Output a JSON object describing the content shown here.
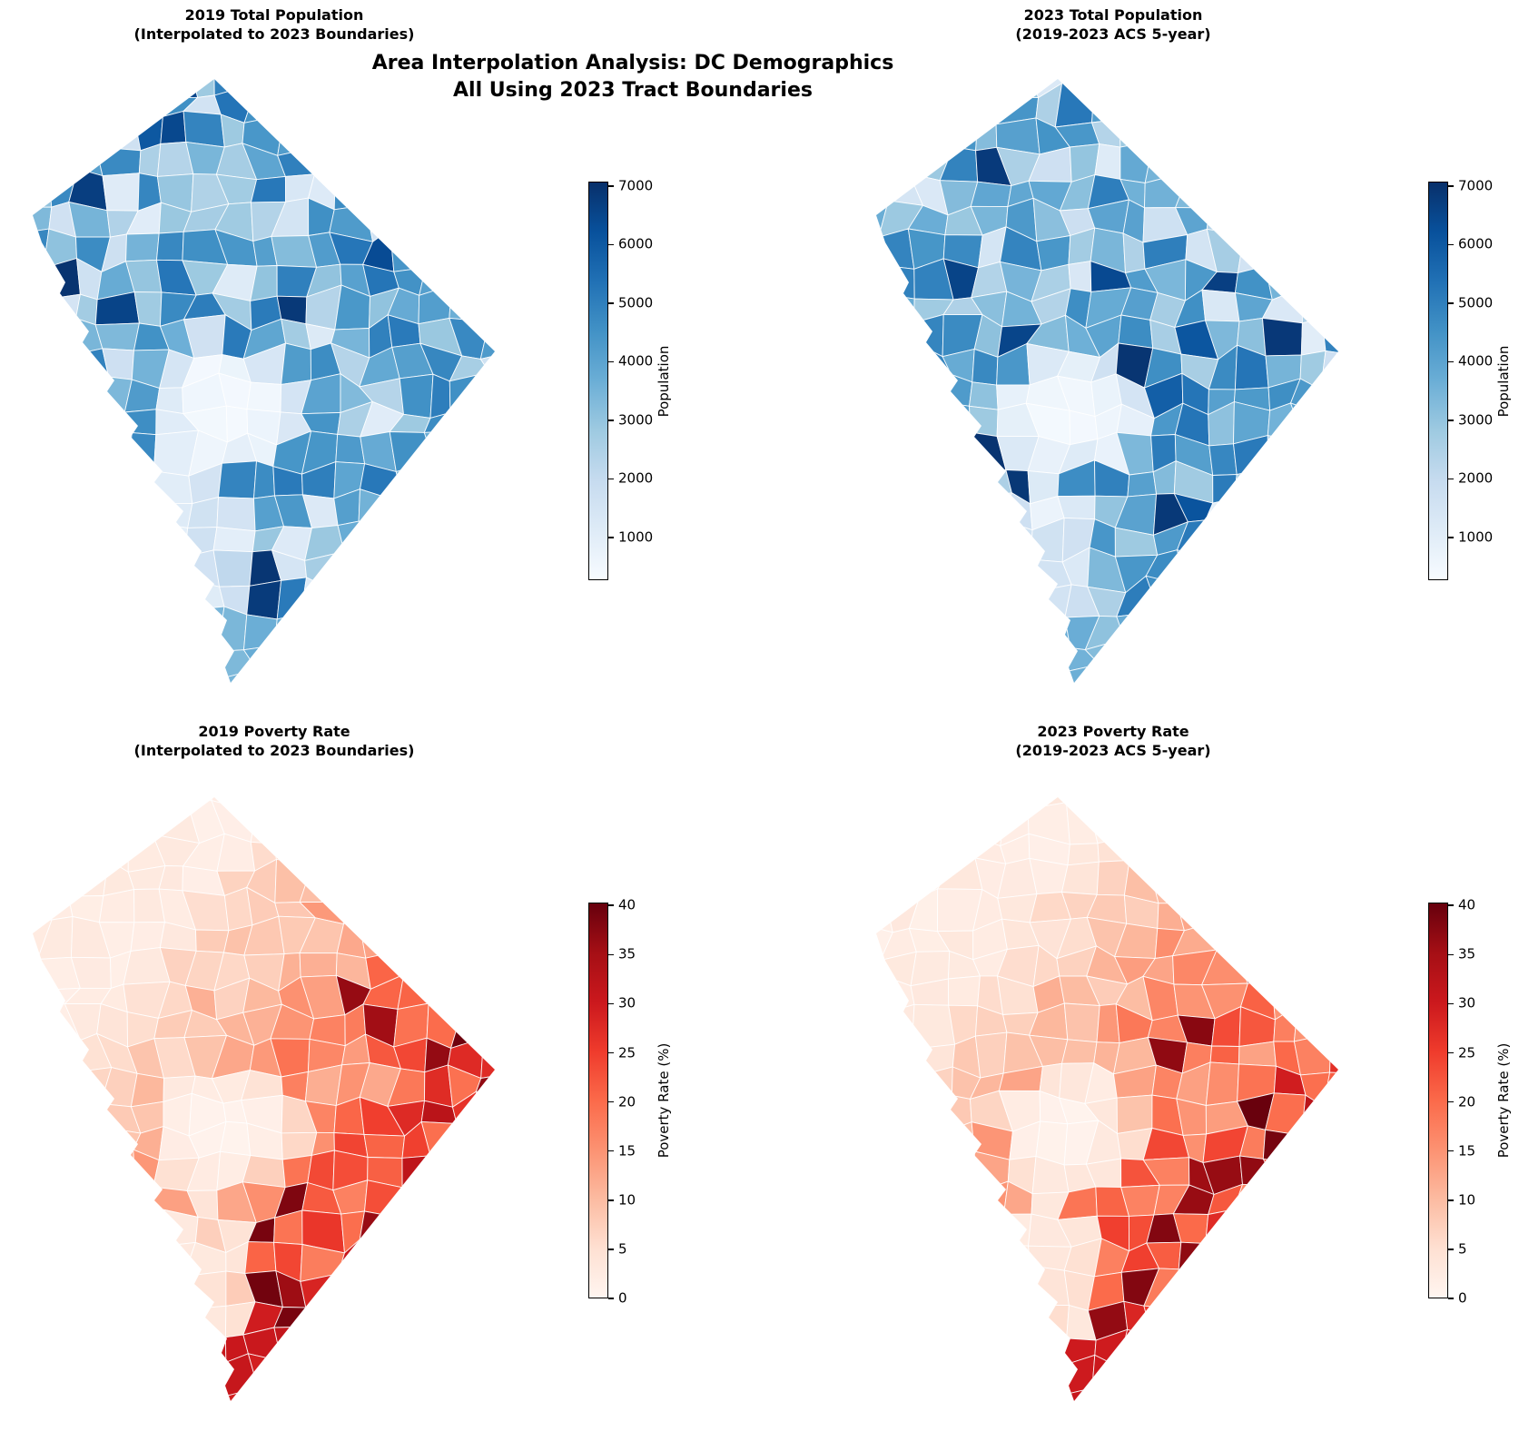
{
  "figure": {
    "suptitle_line1": "Area Interpolation Analysis: DC Demographics",
    "suptitle_line2": "All Using 2023 Tract Boundaries",
    "background_color": "#ffffff",
    "text_color": "#000000"
  },
  "chart_data": {
    "type": "choropleth",
    "region": "Washington DC census tracts (2023 tract boundaries)",
    "layout": "2x2 panels, each map with vertical colorbar on its right",
    "panels": [
      {
        "id": "pop2019",
        "title_line1": "2019 Total Population",
        "title_line2": "(Interpolated to 2023 Boundaries)",
        "colormap": "Blues",
        "colorbar_label": "Population",
        "colorbar_ticks": [
          1000,
          2000,
          3000,
          4000,
          5000,
          6000,
          7000
        ],
        "value_range": [
          270,
          7075
        ],
        "pattern_note": "mid-blue tracts citywide, scattered dark tracts, near-white National Mall / waterfront area"
      },
      {
        "id": "pop2023",
        "title_line1": "2023 Total Population",
        "title_line2": "(2019-2023 ACS 5-year)",
        "colormap": "Blues",
        "colorbar_label": "Population",
        "colorbar_ticks": [
          1000,
          2000,
          3000,
          4000,
          5000,
          6000,
          7000
        ],
        "value_range": [
          270,
          7075
        ],
        "pattern_note": "similar distribution to 2019 with slight tract-level shifts"
      },
      {
        "id": "pov2019",
        "title_line1": "2019 Poverty Rate",
        "title_line2": "(Interpolated to 2023 Boundaries)",
        "colormap": "Reds",
        "colorbar_label": "Poverty Rate (%)",
        "colorbar_ticks": [
          0,
          5,
          10,
          15,
          20,
          25,
          30,
          35,
          40
        ],
        "value_range": [
          0,
          40.3
        ],
        "pattern_note": "pale NW quadrant, dark red along SE/east edge, darkest tract at southern tip"
      },
      {
        "id": "pov2023",
        "title_line1": "2023 Poverty Rate",
        "title_line2": "(2019-2023 ACS 5-year)",
        "colormap": "Reds",
        "colorbar_label": "Poverty Rate (%)",
        "colorbar_ticks": [
          0,
          5,
          10,
          15,
          20,
          25,
          30,
          35,
          40
        ],
        "value_range": [
          0,
          40.3
        ],
        "pattern_note": "pale NW quadrant, dark red SE quadrant with scattered very dark tracts"
      }
    ],
    "colormaps": {
      "Blues": [
        "#f7fbff",
        "#deebf7",
        "#c6dbef",
        "#9ecae1",
        "#6baed6",
        "#4292c6",
        "#2171b5",
        "#08519c",
        "#08306b"
      ],
      "Reds": [
        "#fff5f0",
        "#fee0d2",
        "#fcbba1",
        "#fc9272",
        "#fb6a4a",
        "#ef3b2c",
        "#cb181d",
        "#a50f15",
        "#67000d"
      ]
    },
    "tract_edge_color": "#ffffff"
  },
  "render": {
    "grid": {
      "cols": 17,
      "rows": 22,
      "jitter": 0.6
    },
    "seeds": [
      7,
      13,
      21,
      29
    ],
    "map_size": [
      510,
      665
    ]
  }
}
